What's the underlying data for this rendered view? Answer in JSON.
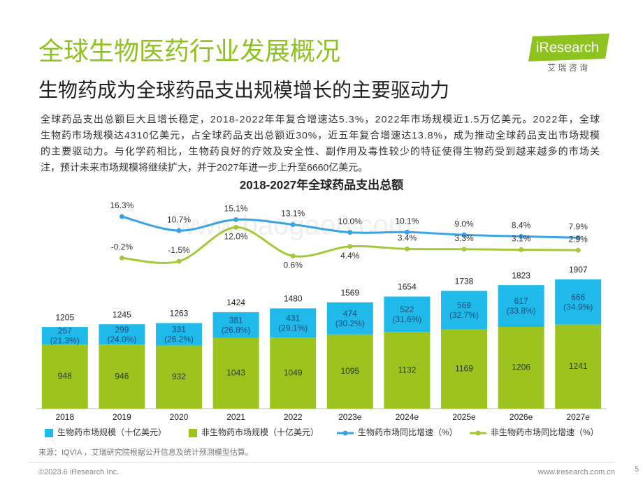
{
  "header": {
    "logo": "iResearch",
    "logo_sub": "艾 瑞 咨 询",
    "title": "全球生物医药行业发展概况",
    "subtitle": "生物药成为全球药品支出规模增长的主要驱动力",
    "paragraph": [
      "全球药品支出总额巨大且增长稳定，2018-2022年年复合增速达5.3%，2022年市场规模近1.5万亿美元。2022年，全球",
      "生物药市场规模达4310亿美元，占全球药品支出总额近30%，近五年复合增速达13.8%，成为推动全球药品支出市场规模",
      "的主要驱动力。与化学药相比，生物药良好的疗效及安全性、副作用及毒性较少的特征使得生物药受到越来越多的市场关",
      "注，预计未来市场规模将继续扩大，并于2027年进一步上升至6660亿美元。"
    ]
  },
  "chart_data": {
    "type": "bar",
    "stacked": true,
    "title": "2018-2027年全球药品支出总额",
    "categories": [
      "2018",
      "2019",
      "2020",
      "2021",
      "2022",
      "2023e",
      "2024e",
      "2025e",
      "2026e",
      "2027e"
    ],
    "series": [
      {
        "name": "生物药市场规模（十亿美元）",
        "type": "bar",
        "color": "#1fb9ea",
        "values": [
          257,
          299,
          331,
          381,
          431,
          474,
          522,
          569,
          617,
          666
        ],
        "share_labels": [
          "(21.3%)",
          "(24.0%)",
          "(26.2%)",
          "(26.8%)",
          "(29.1%)",
          "(30.2%)",
          "(31.6%)",
          "(32.7%)",
          "(33.8%)",
          "(34.9%)"
        ]
      },
      {
        "name": "非生物药市场规模（十亿美元）",
        "type": "bar",
        "color": "#9dc41e",
        "values": [
          948,
          946,
          932,
          1043,
          1049,
          1095,
          1132,
          1169,
          1206,
          1241
        ]
      },
      {
        "name": "生物药市场同比增速（%）",
        "type": "line",
        "axis": "y2",
        "color": "#3aa3e3",
        "values": [
          null,
          16.3,
          10.7,
          15.1,
          13.1,
          10.0,
          10.1,
          9.0,
          8.4,
          7.9
        ],
        "value_labels": [
          null,
          "16.3%",
          "10.7%",
          "15.1%",
          "13.1%",
          "10.0%",
          "10.1%",
          "9.0%",
          "8.4%",
          "7.9%"
        ]
      },
      {
        "name": "非生物药市场同比增速（%）",
        "type": "line",
        "axis": "y2",
        "color": "#a5c73a",
        "values": [
          null,
          -0.2,
          -1.5,
          12.0,
          0.6,
          4.4,
          3.4,
          3.3,
          3.1,
          2.9
        ],
        "value_labels": [
          null,
          "-0.2%",
          "-1.5%",
          "12.0%",
          "0.6%",
          "4.4%",
          "3.4%",
          "3.3%",
          "3.1%",
          "2.9%"
        ]
      }
    ],
    "totals": [
      1205,
      1245,
      1263,
      1424,
      1480,
      1569,
      1654,
      1738,
      1823,
      1907
    ]
  },
  "footer": {
    "source": "来源：IQVIA ，艾瑞研究院根据公开信息及统计预测模型估算。",
    "copyright": "©2023.6 iResearch Inc.",
    "website": "www.iresearch.com.cn",
    "page": "5",
    "watermark": "www.baogao8.com"
  }
}
